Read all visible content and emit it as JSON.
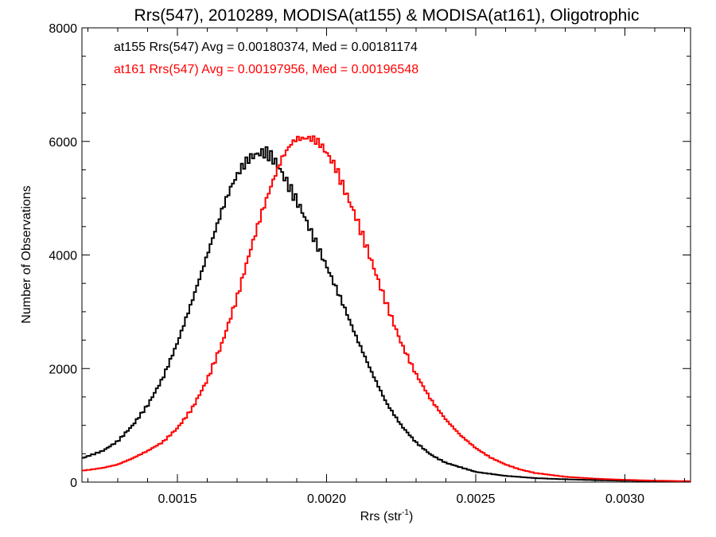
{
  "chart_data": {
    "type": "line",
    "title": "Rrs(547), 2010289, MODISA(at155) & MODISA(at161), Oligotrophic",
    "xlabel": "Rrs (str",
    "xlabel_sup": "-1",
    "xlabel_close": ")",
    "ylabel": "Number of Observations",
    "xlim": [
      0.00118,
      0.00322
    ],
    "ylim": [
      0,
      8000
    ],
    "xticks": [
      {
        "value": 0.0015,
        "label": "0.0015"
      },
      {
        "value": 0.002,
        "label": "0.0020"
      },
      {
        "value": 0.0025,
        "label": "0.0025"
      },
      {
        "value": 0.003,
        "label": "0.0030"
      }
    ],
    "yticks": [
      {
        "value": 0,
        "label": "0"
      },
      {
        "value": 2000,
        "label": "2000"
      },
      {
        "value": 4000,
        "label": "4000"
      },
      {
        "value": 6000,
        "label": "6000"
      },
      {
        "value": 8000,
        "label": "8000"
      }
    ],
    "annotations": [
      {
        "text": "at155 Rrs(547) Avg = 0.00180374, Med = 0.00181174",
        "color": "#000000"
      },
      {
        "text": "at161 Rrs(547) Avg = 0.00197956, Med = 0.00196548",
        "color": "#ff0000"
      }
    ],
    "series": [
      {
        "color": "#000000",
        "x": [
          0.00118,
          0.00125,
          0.0013,
          0.00135,
          0.0014,
          0.00145,
          0.0015,
          0.00155,
          0.0016,
          0.00165,
          0.00168,
          0.00171,
          0.00174,
          0.00176,
          0.00178,
          0.0018,
          0.00182,
          0.00184,
          0.00186,
          0.00188,
          0.0019,
          0.00192,
          0.00194,
          0.00197,
          0.002,
          0.00205,
          0.0021,
          0.00215,
          0.0022,
          0.00225,
          0.0023,
          0.00235,
          0.0024,
          0.0025,
          0.0026,
          0.0027,
          0.0028,
          0.0029,
          0.003,
          0.0031,
          0.00322
        ],
        "y": [
          420,
          550,
          720,
          1000,
          1350,
          1820,
          2450,
          3200,
          4000,
          4800,
          5200,
          5500,
          5700,
          5760,
          5800,
          5800,
          5700,
          5550,
          5350,
          5150,
          4950,
          4750,
          4500,
          4150,
          3800,
          3200,
          2550,
          1950,
          1400,
          1000,
          700,
          480,
          340,
          180,
          110,
          70,
          50,
          35,
          25,
          18,
          12
        ]
      },
      {
        "color": "#ff0000",
        "x": [
          0.00118,
          0.00125,
          0.0013,
          0.00135,
          0.0014,
          0.00145,
          0.0015,
          0.00155,
          0.0016,
          0.00165,
          0.0017,
          0.00174,
          0.00178,
          0.00182,
          0.00185,
          0.00188,
          0.0019,
          0.00192,
          0.00194,
          0.00196,
          0.00198,
          0.002,
          0.00203,
          0.00206,
          0.0021,
          0.00215,
          0.0022,
          0.00225,
          0.0023,
          0.00235,
          0.0024,
          0.00245,
          0.0025,
          0.00255,
          0.0026,
          0.00265,
          0.0027,
          0.0028,
          0.0029,
          0.003,
          0.0031,
          0.00322
        ],
        "y": [
          200,
          250,
          310,
          420,
          550,
          700,
          950,
          1300,
          1800,
          2450,
          3250,
          4000,
          4700,
          5300,
          5700,
          5950,
          6050,
          6050,
          6060,
          6030,
          5950,
          5800,
          5550,
          5150,
          4650,
          3900,
          3150,
          2450,
          1900,
          1450,
          1100,
          820,
          600,
          430,
          310,
          220,
          160,
          95,
          60,
          40,
          25,
          15
        ]
      }
    ]
  }
}
